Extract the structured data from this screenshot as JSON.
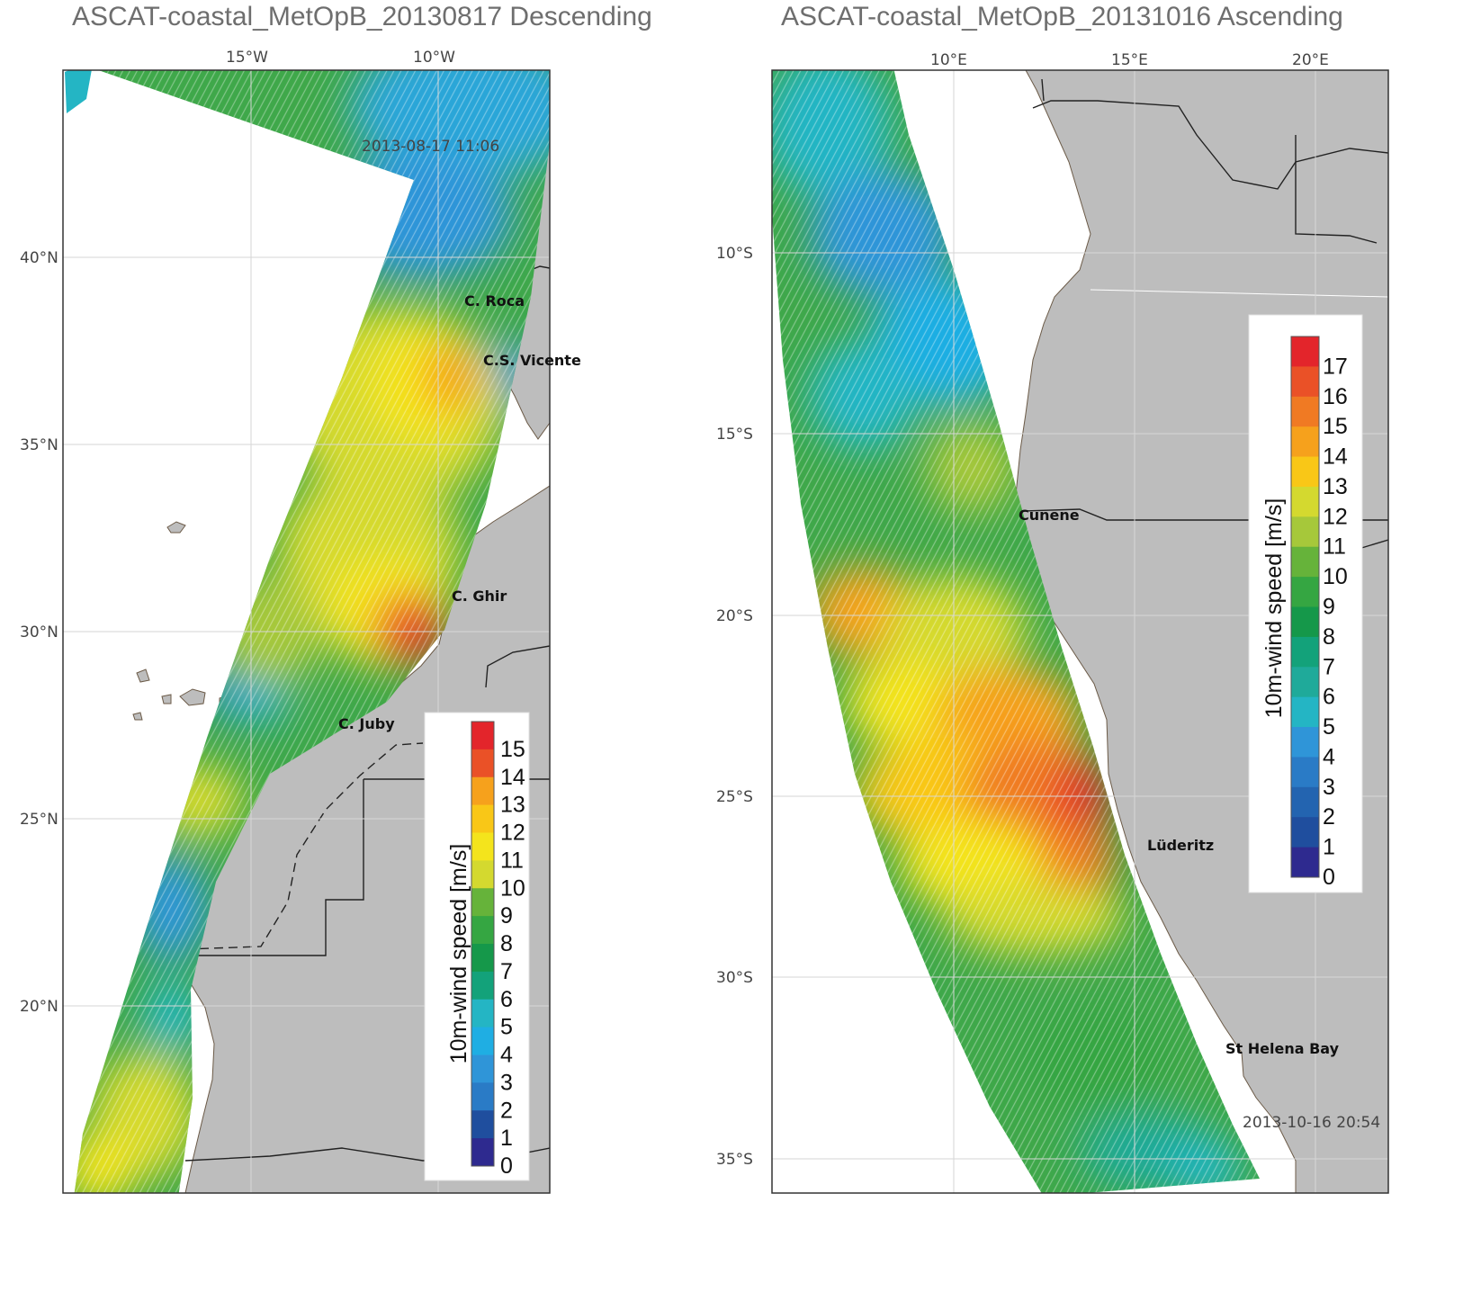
{
  "panels": [
    {
      "title": "ASCAT-coastal_MetOpB_20130817 Descending",
      "timestamp": "2013-08-17 11:06",
      "lon_labels": [
        "15°W",
        "10°W"
      ],
      "lat_labels": [
        "40°N",
        "35°N",
        "30°N",
        "25°N",
        "20°N"
      ],
      "places": [
        "C. Roca",
        "C.S. Vicente",
        "C. Ghir",
        "C. Juby"
      ],
      "colorbar": {
        "title": "10m-wind speed [m/s]",
        "ticks": [
          "15",
          "14",
          "13",
          "12",
          "11",
          "10",
          "9",
          "8",
          "7",
          "6",
          "5",
          "4",
          "3",
          "2",
          "1",
          "0"
        ]
      }
    },
    {
      "title": "ASCAT-coastal_MetOpB_20131016 Ascending",
      "timestamp": "2013-10-16 20:54",
      "lon_labels": [
        "10°E",
        "15°E",
        "20°E"
      ],
      "lat_labels": [
        "10°S",
        "15°S",
        "20°S",
        "25°S",
        "30°S",
        "35°S"
      ],
      "places": [
        "Cunene",
        "Lüderitz",
        "St Helena Bay"
      ],
      "colorbar": {
        "title": "10m-wind speed [m/s]",
        "ticks": [
          "17",
          "16",
          "15",
          "14",
          "13",
          "12",
          "11",
          "10",
          "9",
          "8",
          "7",
          "6",
          "5",
          "4",
          "3",
          "2",
          "1",
          "0"
        ]
      }
    }
  ],
  "colors": {
    "land": "#bdbdbd",
    "frame": "#333333",
    "wind_scale": [
      "#2e2a8f",
      "#1f4e9e",
      "#2364b0",
      "#2a7bc6",
      "#2f95d8",
      "#1faee3",
      "#24b5c4",
      "#1faa9a",
      "#13a27a",
      "#15984a",
      "#35a642",
      "#66b33a",
      "#a6c83a",
      "#d4d92f",
      "#f4e41c",
      "#f9c717",
      "#f6a11c",
      "#f07a23",
      "#ea5127",
      "#e3252b"
    ]
  }
}
